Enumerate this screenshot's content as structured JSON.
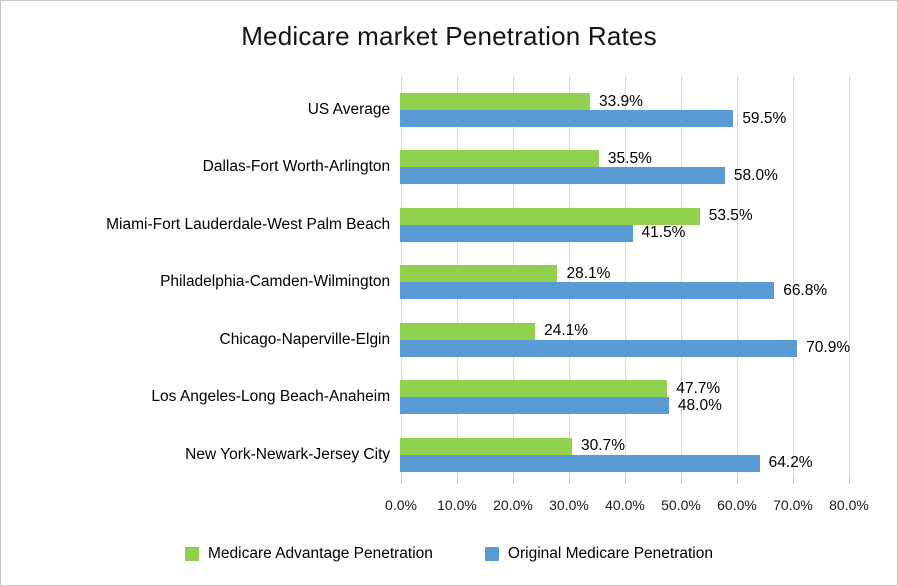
{
  "chart_data": {
    "type": "bar",
    "orientation": "horizontal",
    "title": "Medicare market Penetration Rates",
    "categories": [
      "US Average",
      "Dallas-Fort Worth-Arlington",
      "Miami-Fort Lauderdale-West Palm Beach",
      "Philadelphia-Camden-Wilmington",
      "Chicago-Naperville-Elgin",
      "Los Angeles-Long Beach-Anaheim",
      "New York-Newark-Jersey City"
    ],
    "series": [
      {
        "name": "Medicare Advantage Penetration",
        "color": "#92D050",
        "values": [
          33.9,
          35.5,
          53.5,
          28.1,
          24.1,
          47.7,
          30.7
        ],
        "labels": [
          "33.9%",
          "35.5%",
          "53.5%",
          "28.1%",
          "24.1%",
          "47.7%",
          "30.7%"
        ]
      },
      {
        "name": "Original Medicare Penetration",
        "color": "#5B9BD5",
        "values": [
          59.5,
          58.0,
          41.5,
          66.8,
          70.9,
          48.0,
          64.2
        ],
        "labels": [
          "59.5%",
          "58.0%",
          "41.5%",
          "66.8%",
          "70.9%",
          "48.0%",
          "64.2%"
        ]
      }
    ],
    "x_axis": {
      "min": 0,
      "max": 80,
      "tick_step": 10,
      "ticks": [
        "0.0%",
        "10.0%",
        "20.0%",
        "30.0%",
        "40.0%",
        "50.0%",
        "60.0%",
        "70.0%",
        "80.0%"
      ],
      "grid": true
    },
    "legend_position": "bottom"
  },
  "colors": {
    "gridline": "#D9D9D9",
    "tick": "#BFBFBF",
    "frame_border": "#C8C8C8",
    "text": "#000000"
  }
}
